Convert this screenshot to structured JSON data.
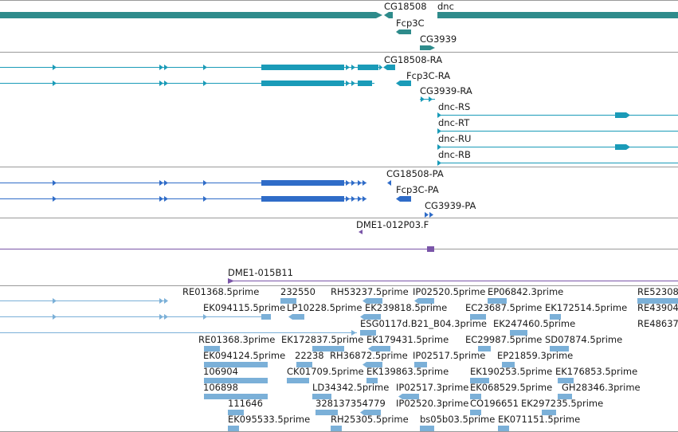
{
  "tracks": {
    "genes": {
      "labels": [
        "CG18508",
        "dnc",
        "Fcp3C",
        "CG3939"
      ],
      "color": "#2e8b8b"
    },
    "transcripts": {
      "labels": [
        "CG18508-RA",
        "Fcp3C-RA",
        "CG3939-RA",
        "dnc-RS",
        "dnc-RT",
        "dnc-RU",
        "dnc-RB"
      ],
      "color": "#1a9bb8"
    },
    "proteins": {
      "labels": [
        "CG18508-PA",
        "Fcp3C-PA",
        "CG3939-PA"
      ],
      "color": "#2f6cc8"
    },
    "clone": {
      "labels": [
        "DME1-012P03.F"
      ],
      "color": "#7a55a8"
    },
    "clone2": {
      "labels": [
        "DME1-015B11"
      ],
      "color": "#7a55a8"
    },
    "ests": {
      "color": "#7bb0d8",
      "labels": [
        "RE01368.5prime",
        "232550",
        "RH53237.5prime",
        "IP02520.5prime",
        "EP06842.3prime",
        "RE52308",
        "EK094115.5prime",
        "LP10228.5prime",
        "EK239818.5prime",
        "EC23687.5prime",
        "EK172514.5prime",
        "RE43904",
        "ESG0117d.B21_B04.3prime",
        "EK247460.5prime",
        "RE48637",
        "RE01368.3prime",
        "EK172837.5prime",
        "EK179431.5prime",
        "EC29987.5prime",
        "SD07874.5prime",
        "EK094124.5prime",
        "22238",
        "RH36872.5prime",
        "IP02517.5prime",
        "EP21859.3prime",
        "106904",
        "CK01709.5prime",
        "EK139863.5prime",
        "EK190253.5prime",
        "EK176853.5prime",
        "106898",
        "LD34342.5prime",
        "IP02517.3prime",
        "EK068529.5prime",
        "GH28346.3prime",
        "111646",
        "328137354779",
        "IP02520.3prime",
        "CO196651",
        "EK297235.5prime",
        "EK095533.5prime",
        "RH25305.5prime",
        "bs05b03.5prime",
        "EK071151.5prime"
      ]
    }
  }
}
